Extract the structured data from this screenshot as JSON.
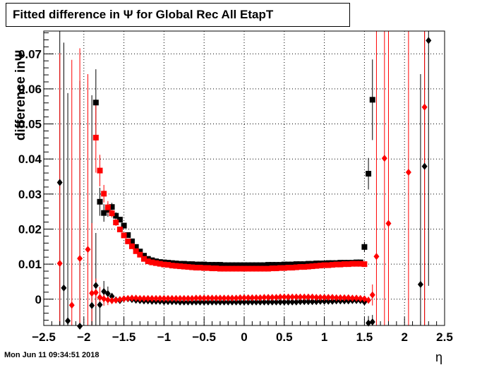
{
  "chart_data": {
    "type": "scatter",
    "title": "Fitted difference in  Ψ  for Global Rec All EtapT",
    "xlabel": "η",
    "ylabel": "difference inΨ",
    "timestamp": "Mon Jun 11 09:34:51 2018",
    "xlim": [
      -2.5,
      2.5
    ],
    "ylim": [
      -0.0075,
      0.0765
    ],
    "grid": true,
    "x_ticks": [
      {
        "value": -2.5,
        "label": "−2.5"
      },
      {
        "value": -2,
        "label": "−2"
      },
      {
        "value": -1.5,
        "label": "−1.5"
      },
      {
        "value": -1,
        "label": "−1"
      },
      {
        "value": -0.5,
        "label": "−0.5"
      },
      {
        "value": 0,
        "label": "0"
      },
      {
        "value": 0.5,
        "label": "0.5"
      },
      {
        "value": 1,
        "label": "1"
      },
      {
        "value": 1.5,
        "label": "1.5"
      },
      {
        "value": 2,
        "label": "2"
      },
      {
        "value": 2.5,
        "label": "2.5"
      }
    ],
    "y_ticks": [
      {
        "value": 0,
        "label": "0"
      },
      {
        "value": 0.01,
        "label": "0.01"
      },
      {
        "value": 0.02,
        "label": "0.02"
      },
      {
        "value": 0.03,
        "label": "0.03"
      },
      {
        "value": 0.04,
        "label": "0.04"
      },
      {
        "value": 0.05,
        "label": "0.05"
      },
      {
        "value": 0.06,
        "label": "0.06"
      },
      {
        "value": 0.07,
        "label": "0.07"
      }
    ],
    "colors": {
      "black": "#000000",
      "red": "#ff0000"
    },
    "series": [
      {
        "marker": "square",
        "color": "#000000",
        "x": [
          -1.85,
          -1.8,
          -1.75,
          -1.7,
          -1.65,
          -1.6,
          -1.55,
          -1.5,
          -1.45,
          -1.4,
          -1.35,
          -1.3,
          -1.25,
          -1.2,
          -1.15,
          -1.1,
          -1.05,
          -1.0,
          -0.95,
          -0.9,
          -0.85,
          -0.8,
          -0.75,
          -0.7,
          -0.65,
          -0.6,
          -0.55,
          -0.5,
          -0.45,
          -0.4,
          -0.35,
          -0.3,
          -0.25,
          -0.2,
          -0.15,
          -0.1,
          -0.05,
          0.0,
          0.05,
          0.1,
          0.15,
          0.2,
          0.25,
          0.3,
          0.35,
          0.4,
          0.45,
          0.5,
          0.55,
          0.6,
          0.65,
          0.7,
          0.75,
          0.8,
          0.85,
          0.9,
          0.95,
          1.0,
          1.05,
          1.1,
          1.15,
          1.2,
          1.25,
          1.3,
          1.35,
          1.4,
          1.45,
          1.5,
          1.55,
          1.6
        ],
        "y": [
          0.0561,
          0.0278,
          0.0246,
          0.0255,
          0.0263,
          0.0238,
          0.0227,
          0.021,
          0.0183,
          0.0165,
          0.0149,
          0.0136,
          0.0124,
          0.0115,
          0.0111,
          0.0108,
          0.0106,
          0.0105,
          0.0104,
          0.0103,
          0.0102,
          0.0101,
          0.0101,
          0.01,
          0.01,
          0.0099,
          0.0099,
          0.0099,
          0.0098,
          0.0098,
          0.0098,
          0.0098,
          0.0097,
          0.0097,
          0.0097,
          0.0097,
          0.0097,
          0.0097,
          0.0097,
          0.0097,
          0.0097,
          0.0097,
          0.0097,
          0.0098,
          0.0098,
          0.0098,
          0.0098,
          0.0099,
          0.0099,
          0.0099,
          0.01,
          0.01,
          0.01,
          0.0101,
          0.0101,
          0.0102,
          0.0102,
          0.0102,
          0.0103,
          0.0103,
          0.0103,
          0.0104,
          0.0104,
          0.0104,
          0.0104,
          0.0105,
          0.0105,
          0.0149,
          0.0358,
          0.0569
        ],
        "err": [
          0.0095,
          0.004,
          0.0025,
          0.002,
          0.0012,
          0.001,
          0.0008,
          0.0006,
          0.0005,
          0.0004,
          0.0004,
          0.0003,
          0.0003,
          0.0003,
          0.0003,
          0.0003,
          0.0003,
          0.0003,
          0.0003,
          0.0003,
          0.0003,
          0.0003,
          0.0003,
          0.0003,
          0.0003,
          0.0003,
          0.0003,
          0.0003,
          0.0003,
          0.0003,
          0.0003,
          0.0003,
          0.0003,
          0.0003,
          0.0003,
          0.0003,
          0.0003,
          0.0003,
          0.0003,
          0.0003,
          0.0003,
          0.0003,
          0.0003,
          0.0003,
          0.0003,
          0.0003,
          0.0003,
          0.0003,
          0.0003,
          0.0003,
          0.0003,
          0.0003,
          0.0003,
          0.0003,
          0.0003,
          0.0003,
          0.0003,
          0.0003,
          0.0003,
          0.0003,
          0.0003,
          0.0003,
          0.0004,
          0.0004,
          0.0005,
          0.0006,
          0.0008,
          0.0015,
          0.0045,
          0.0115
        ]
      },
      {
        "marker": "square",
        "color": "#ff0000",
        "x": [
          -1.85,
          -1.8,
          -1.75,
          -1.7,
          -1.65,
          -1.6,
          -1.55,
          -1.5,
          -1.45,
          -1.4,
          -1.35,
          -1.3,
          -1.25,
          -1.2,
          -1.15,
          -1.1,
          -1.05,
          -1.0,
          -0.95,
          -0.9,
          -0.85,
          -0.8,
          -0.75,
          -0.7,
          -0.65,
          -0.6,
          -0.55,
          -0.5,
          -0.45,
          -0.4,
          -0.35,
          -0.3,
          -0.25,
          -0.2,
          -0.15,
          -0.1,
          -0.05,
          0.0,
          0.05,
          0.1,
          0.15,
          0.2,
          0.25,
          0.3,
          0.35,
          0.4,
          0.45,
          0.5,
          0.55,
          0.6,
          0.65,
          0.7,
          0.75,
          0.8,
          0.85,
          0.9,
          0.95,
          1.0,
          1.05,
          1.1,
          1.15,
          1.2,
          1.25,
          1.3,
          1.35,
          1.4,
          1.45,
          1.5
        ],
        "y": [
          0.0461,
          0.0367,
          0.0301,
          0.0262,
          0.0245,
          0.0219,
          0.0199,
          0.0182,
          0.0165,
          0.0151,
          0.0137,
          0.0127,
          0.0115,
          0.0108,
          0.0105,
          0.0103,
          0.0101,
          0.0099,
          0.0098,
          0.0096,
          0.0095,
          0.0094,
          0.0093,
          0.0092,
          0.0091,
          0.009,
          0.009,
          0.0089,
          0.0089,
          0.0088,
          0.0088,
          0.0087,
          0.0087,
          0.0087,
          0.0087,
          0.0087,
          0.0087,
          0.0087,
          0.0087,
          0.0087,
          0.0087,
          0.0087,
          0.0087,
          0.0087,
          0.0088,
          0.0088,
          0.0089,
          0.0089,
          0.009,
          0.009,
          0.0091,
          0.0092,
          0.0092,
          0.0093,
          0.0094,
          0.0095,
          0.0096,
          0.0097,
          0.0097,
          0.0098,
          0.0099,
          0.0099,
          0.01,
          0.01,
          0.0101,
          0.0101,
          0.0101,
          0.01
        ],
        "err": [
          0.01,
          0.0045,
          0.0025,
          0.0018,
          0.0012,
          0.001,
          0.0008,
          0.0006,
          0.0005,
          0.0004,
          0.0004,
          0.0003,
          0.0003,
          0.0003,
          0.0003,
          0.0003,
          0.0003,
          0.0003,
          0.0003,
          0.0003,
          0.0003,
          0.0003,
          0.0003,
          0.0003,
          0.0003,
          0.0003,
          0.0003,
          0.0003,
          0.0003,
          0.0003,
          0.0003,
          0.0003,
          0.0003,
          0.0003,
          0.0003,
          0.0003,
          0.0003,
          0.0003,
          0.0003,
          0.0003,
          0.0003,
          0.0003,
          0.0003,
          0.0003,
          0.0003,
          0.0003,
          0.0003,
          0.0003,
          0.0003,
          0.0003,
          0.0003,
          0.0003,
          0.0003,
          0.0003,
          0.0003,
          0.0003,
          0.0003,
          0.0003,
          0.0003,
          0.0003,
          0.0003,
          0.0003,
          0.0003,
          0.0004,
          0.0004,
          0.0005,
          0.0006,
          0.0008
        ]
      },
      {
        "marker": "diamond",
        "color": "#000000",
        "x": [
          -2.3,
          -2.25,
          -2.2,
          -2.05,
          -1.9,
          -1.85,
          -1.8,
          -1.75,
          -1.7,
          -1.65,
          -1.6,
          -1.55,
          -1.5,
          -1.45,
          -1.4,
          -1.35,
          -1.3,
          -1.25,
          -1.2,
          -1.15,
          -1.1,
          -1.05,
          -1.0,
          -0.95,
          -0.9,
          -0.85,
          -0.8,
          -0.75,
          -0.7,
          -0.65,
          -0.6,
          -0.55,
          -0.5,
          -0.45,
          -0.4,
          -0.35,
          -0.3,
          -0.25,
          -0.2,
          -0.15,
          -0.1,
          -0.05,
          0.0,
          0.05,
          0.1,
          0.15,
          0.2,
          0.25,
          0.3,
          0.35,
          0.4,
          0.45,
          0.5,
          0.55,
          0.6,
          0.65,
          0.7,
          0.75,
          0.8,
          0.85,
          0.9,
          0.95,
          1.0,
          1.05,
          1.1,
          1.15,
          1.2,
          1.25,
          1.3,
          1.35,
          1.4,
          1.45,
          1.5,
          1.55,
          1.6,
          2.2,
          2.25,
          2.3
        ],
        "y": [
          0.0333,
          0.0032,
          -0.0062,
          -0.0077,
          -0.0018,
          0.0039,
          -0.0016,
          0.0022,
          0.0016,
          0.0008,
          -0.0002,
          -0.0004,
          0.0001,
          0.0001,
          -0.0001,
          -0.0003,
          -0.0004,
          -0.0005,
          -0.0005,
          -0.0006,
          -0.0006,
          -0.0006,
          -0.0007,
          -0.0007,
          -0.0007,
          -0.0007,
          -0.0008,
          -0.0008,
          -0.0008,
          -0.0008,
          -0.0008,
          -0.0008,
          -0.0008,
          -0.0008,
          -0.0008,
          -0.0008,
          -0.0008,
          -0.0008,
          -0.0008,
          -0.0008,
          -0.0008,
          -0.0008,
          -0.0008,
          -0.0008,
          -0.0008,
          -0.0008,
          -0.0008,
          -0.0008,
          -0.0008,
          -0.0008,
          -0.0008,
          -0.0008,
          -0.0008,
          -0.0008,
          -0.0008,
          -0.0008,
          -0.0007,
          -0.0007,
          -0.0007,
          -0.0007,
          -0.0007,
          -0.0006,
          -0.0006,
          -0.0006,
          -0.0006,
          -0.0005,
          -0.0005,
          -0.0005,
          -0.0005,
          -0.0004,
          -0.0004,
          -0.0004,
          -0.0008,
          -0.0068,
          -0.0065,
          0.0042,
          0.0379,
          0.0738
        ],
        "err": [
          0.06,
          0.07,
          0.065,
          0.07,
          0.06,
          0.015,
          0.005,
          0.003,
          0.002,
          0.001,
          0.0008,
          0.0006,
          0.0005,
          0.0004,
          0.0004,
          0.0003,
          0.0003,
          0.0003,
          0.0003,
          0.0003,
          0.0003,
          0.0003,
          0.0003,
          0.0003,
          0.0003,
          0.0003,
          0.0003,
          0.0003,
          0.0003,
          0.0003,
          0.0003,
          0.0003,
          0.0003,
          0.0003,
          0.0003,
          0.0003,
          0.0003,
          0.0003,
          0.0003,
          0.0003,
          0.0003,
          0.0003,
          0.0003,
          0.0003,
          0.0003,
          0.0003,
          0.0003,
          0.0003,
          0.0003,
          0.0003,
          0.0003,
          0.0003,
          0.0003,
          0.0003,
          0.0003,
          0.0003,
          0.0003,
          0.0003,
          0.0003,
          0.0003,
          0.0003,
          0.0003,
          0.0003,
          0.0003,
          0.0003,
          0.0003,
          0.0003,
          0.0003,
          0.0003,
          0.0003,
          0.0003,
          0.0003,
          0.0005,
          0.002,
          0.002,
          0.06,
          0.07,
          0.07
        ]
      },
      {
        "marker": "diamond",
        "color": "#ff0000",
        "x": [
          -2.3,
          -2.15,
          -2.05,
          -1.95,
          -1.9,
          -1.85,
          -1.8,
          -1.75,
          -1.7,
          -1.65,
          -1.6,
          -1.55,
          -1.5,
          -1.45,
          -1.4,
          -1.35,
          -1.3,
          -1.25,
          -1.2,
          -1.15,
          -1.1,
          -1.05,
          -1.0,
          -0.95,
          -0.9,
          -0.85,
          -0.8,
          -0.75,
          -0.7,
          -0.65,
          -0.6,
          -0.55,
          -0.5,
          -0.45,
          -0.4,
          -0.35,
          -0.3,
          -0.25,
          -0.2,
          -0.15,
          -0.1,
          -0.05,
          0.0,
          0.05,
          0.1,
          0.15,
          0.2,
          0.25,
          0.3,
          0.35,
          0.4,
          0.45,
          0.5,
          0.55,
          0.6,
          0.65,
          0.7,
          0.75,
          0.8,
          0.85,
          0.9,
          0.95,
          1.0,
          1.05,
          1.1,
          1.15,
          1.2,
          1.25,
          1.3,
          1.35,
          1.4,
          1.45,
          1.5,
          1.55,
          1.6,
          1.65,
          1.75,
          1.8,
          2.05,
          2.25
        ],
        "y": [
          0.0102,
          -0.0017,
          0.0116,
          0.0142,
          0.0017,
          0.0019,
          0.0005,
          0.0001,
          -0.0002,
          -0.0004,
          -0.0003,
          -0.0001,
          0.0001,
          0.0002,
          0.0003,
          0.0003,
          0.0002,
          0.0002,
          0.0002,
          0.0002,
          0.0002,
          0.0002,
          0.0002,
          0.0002,
          0.0002,
          0.0002,
          0.0002,
          0.0002,
          0.0002,
          0.0002,
          0.0003,
          0.0003,
          0.0003,
          0.0003,
          0.0003,
          0.0003,
          0.0003,
          0.0003,
          0.0003,
          0.0003,
          0.0003,
          0.0004,
          0.0004,
          0.0004,
          0.0004,
          0.0004,
          0.0004,
          0.0005,
          0.0005,
          0.0005,
          0.0005,
          0.0006,
          0.0006,
          0.0006,
          0.0006,
          0.0006,
          0.0006,
          0.0006,
          0.0006,
          0.0006,
          0.0005,
          0.0005,
          0.0005,
          0.0005,
          0.0005,
          0.0004,
          0.0004,
          0.0004,
          0.0004,
          0.0003,
          0.0003,
          0.0002,
          0.0001,
          -0.0003,
          0.0012,
          0.0122,
          0.0402,
          0.0216,
          0.0362,
          0.0548
        ],
        "err": [
          0.06,
          0.07,
          0.06,
          0.05,
          0.02,
          0.004,
          0.003,
          0.002,
          0.0015,
          0.001,
          0.0008,
          0.0006,
          0.0005,
          0.0004,
          0.0004,
          0.0003,
          0.0003,
          0.0003,
          0.0003,
          0.0003,
          0.0003,
          0.0003,
          0.0003,
          0.0003,
          0.0003,
          0.0003,
          0.0003,
          0.0003,
          0.0003,
          0.0003,
          0.0003,
          0.0003,
          0.0003,
          0.0003,
          0.0003,
          0.0003,
          0.0003,
          0.0003,
          0.0003,
          0.0003,
          0.0003,
          0.0003,
          0.0003,
          0.0003,
          0.0003,
          0.0003,
          0.0003,
          0.0003,
          0.0003,
          0.0003,
          0.0003,
          0.0003,
          0.0003,
          0.0003,
          0.0003,
          0.0003,
          0.0003,
          0.0003,
          0.0003,
          0.0003,
          0.0003,
          0.0003,
          0.0003,
          0.0003,
          0.0003,
          0.0003,
          0.0003,
          0.0003,
          0.0003,
          0.0003,
          0.0003,
          0.0003,
          0.0004,
          0.001,
          0.003,
          0.07,
          0.07,
          0.07,
          0.07,
          0.07
        ]
      }
    ]
  }
}
